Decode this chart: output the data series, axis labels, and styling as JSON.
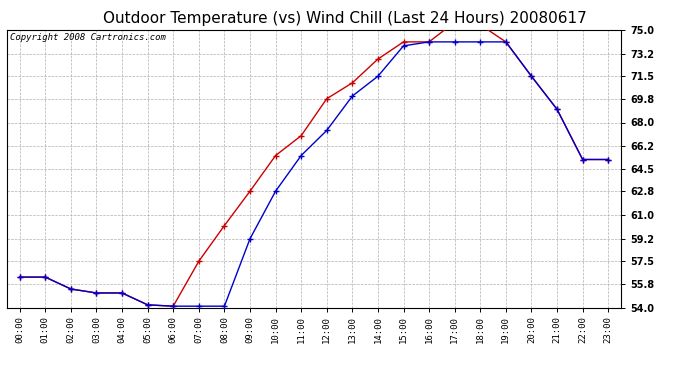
{
  "title": "Outdoor Temperature (vs) Wind Chill (Last 24 Hours) 20080617",
  "copyright": "Copyright 2008 Cartronics.com",
  "x_labels": [
    "00:00",
    "01:00",
    "02:00",
    "03:00",
    "04:00",
    "05:00",
    "06:00",
    "07:00",
    "08:00",
    "09:00",
    "10:00",
    "11:00",
    "12:00",
    "13:00",
    "14:00",
    "15:00",
    "16:00",
    "17:00",
    "18:00",
    "19:00",
    "20:00",
    "21:00",
    "22:00",
    "23:00"
  ],
  "temp_data": [
    56.3,
    56.3,
    55.4,
    55.1,
    55.1,
    54.2,
    54.1,
    57.5,
    60.2,
    62.8,
    65.5,
    67.0,
    69.8,
    71.0,
    72.8,
    74.1,
    74.1,
    75.6,
    75.4,
    74.1,
    71.5,
    69.0,
    65.2,
    65.2
  ],
  "wind_chill_data": [
    56.3,
    56.3,
    55.4,
    55.1,
    55.1,
    54.2,
    54.1,
    54.1,
    54.1,
    59.2,
    62.8,
    65.5,
    67.4,
    70.0,
    71.5,
    73.8,
    74.1,
    74.1,
    74.1,
    74.1,
    71.5,
    69.0,
    65.2,
    65.2
  ],
  "temp_color": "#cc0000",
  "wind_chill_color": "#0000cc",
  "bg_color": "#ffffff",
  "plot_bg_color": "#ffffff",
  "grid_color": "#b0b0b0",
  "ylim": [
    54.0,
    75.0
  ],
  "yticks": [
    54.0,
    55.8,
    57.5,
    59.2,
    61.0,
    62.8,
    64.5,
    66.2,
    68.0,
    69.8,
    71.5,
    73.2,
    75.0
  ],
  "title_fontsize": 11,
  "copyright_fontsize": 6.5
}
